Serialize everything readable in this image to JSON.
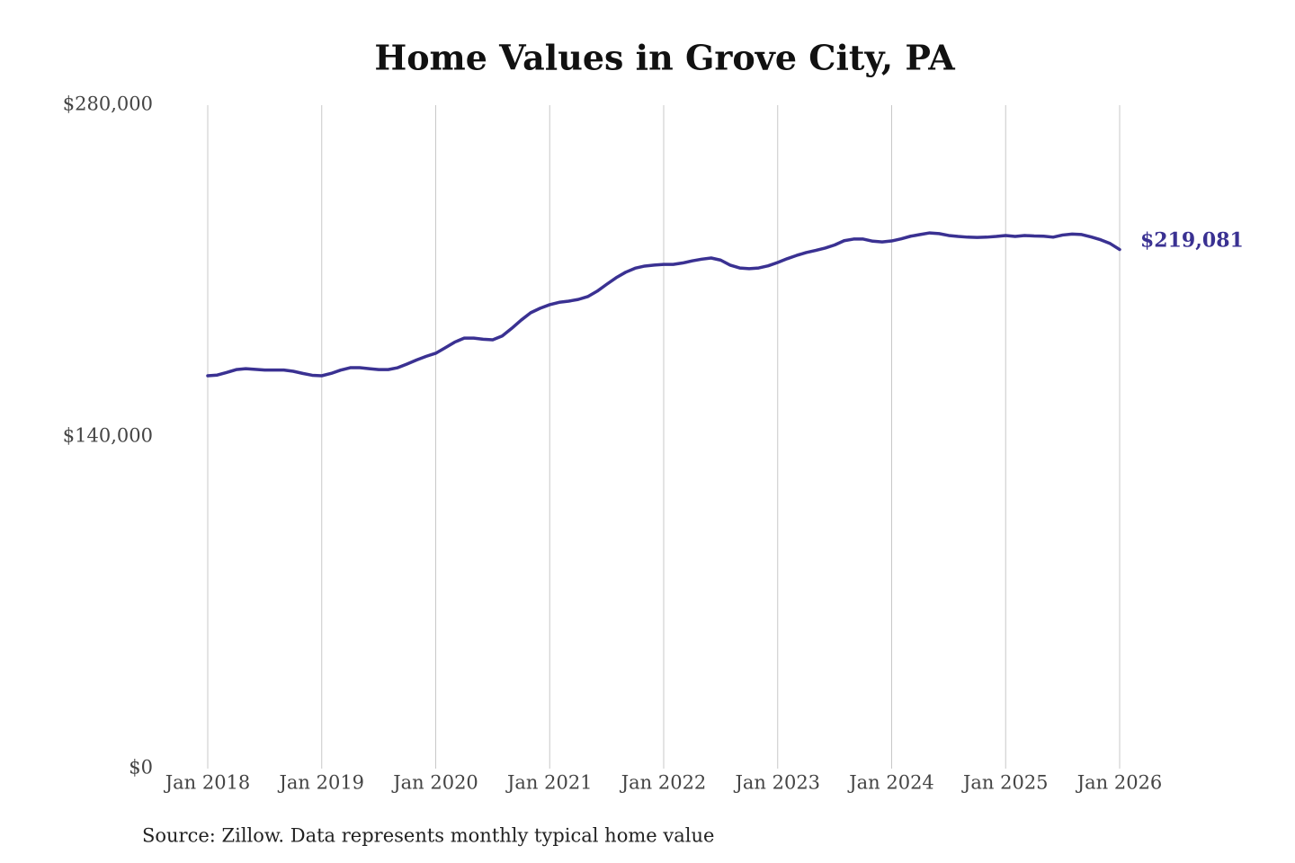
{
  "chart_data": {
    "type": "line",
    "title": "Home Values in Grove City, PA",
    "source": "Source: Zillow. Data represents monthly typical home value",
    "x": [
      "2018-01",
      "2018-02",
      "2018-03",
      "2018-04",
      "2018-05",
      "2018-06",
      "2018-07",
      "2018-08",
      "2018-09",
      "2018-10",
      "2018-11",
      "2018-12",
      "2019-01",
      "2019-02",
      "2019-03",
      "2019-04",
      "2019-05",
      "2019-06",
      "2019-07",
      "2019-08",
      "2019-09",
      "2019-10",
      "2019-11",
      "2019-12",
      "2020-01",
      "2020-02",
      "2020-03",
      "2020-04",
      "2020-05",
      "2020-06",
      "2020-07",
      "2020-08",
      "2020-09",
      "2020-10",
      "2020-11",
      "2020-12",
      "2021-01",
      "2021-02",
      "2021-03",
      "2021-04",
      "2021-05",
      "2021-06",
      "2021-07",
      "2021-08",
      "2021-09",
      "2021-10",
      "2021-11",
      "2021-12",
      "2022-01",
      "2022-02",
      "2022-03",
      "2022-04",
      "2022-05",
      "2022-06",
      "2022-07",
      "2022-08",
      "2022-09",
      "2022-10",
      "2022-11",
      "2022-12",
      "2023-01",
      "2023-02",
      "2023-03",
      "2023-04",
      "2023-05",
      "2023-06",
      "2023-07",
      "2023-08",
      "2023-09",
      "2023-10",
      "2023-11",
      "2023-12",
      "2024-01",
      "2024-02",
      "2024-03",
      "2024-04",
      "2024-05",
      "2024-06",
      "2024-07",
      "2024-08",
      "2024-09",
      "2024-10",
      "2024-11",
      "2024-12",
      "2025-01",
      "2025-02",
      "2025-03",
      "2025-04",
      "2025-05",
      "2025-06",
      "2025-07",
      "2025-08",
      "2025-09",
      "2025-10",
      "2025-11",
      "2025-12",
      "2026-01"
    ],
    "series": [
      {
        "color": "#3a3192",
        "values": [
          165800,
          166100,
          167200,
          168400,
          168800,
          168500,
          168200,
          168200,
          168200,
          167700,
          166800,
          166000,
          165800,
          166800,
          168200,
          169200,
          169200,
          168800,
          168400,
          168400,
          169200,
          170800,
          172500,
          174000,
          175300,
          177600,
          180000,
          181700,
          181700,
          181200,
          181000,
          182600,
          185800,
          189300,
          192400,
          194300,
          195800,
          196800,
          197300,
          198000,
          199200,
          201500,
          204400,
          207200,
          209500,
          211200,
          212100,
          212500,
          212800,
          212800,
          213400,
          214300,
          215000,
          215500,
          214600,
          212500,
          211300,
          211000,
          211300,
          212200,
          213600,
          215200,
          216600,
          217800,
          218700,
          219700,
          221000,
          222800,
          223500,
          223500,
          222600,
          222300,
          222700,
          223600,
          224700,
          225400,
          226100,
          225800,
          225000,
          224600,
          224300,
          224200,
          224300,
          224600,
          225000,
          224600,
          225000,
          224800,
          224700,
          224300,
          225200,
          225600,
          225400,
          224400,
          223200,
          221600,
          219081
        ],
        "value_labels": [
          null,
          null,
          null,
          null,
          null,
          null,
          null,
          null,
          null,
          null,
          null,
          null,
          null,
          null,
          null,
          null,
          null,
          null,
          null,
          null,
          null,
          null,
          null,
          null,
          null,
          null,
          null,
          null,
          null,
          null,
          null,
          null,
          null,
          null,
          null,
          null,
          null,
          null,
          null,
          null,
          null,
          null,
          null,
          null,
          null,
          null,
          null,
          null,
          null,
          null,
          null,
          null,
          null,
          null,
          null,
          null,
          null,
          null,
          null,
          null,
          null,
          null,
          null,
          null,
          null,
          null,
          null,
          null,
          null,
          null,
          null,
          null,
          null,
          null,
          null,
          null,
          null,
          null,
          null,
          null,
          null,
          null,
          null,
          null,
          null,
          null,
          null,
          null,
          null,
          null,
          null,
          null,
          null,
          null,
          null,
          null,
          "$219,081"
        ]
      }
    ],
    "xlim": [
      "2018-01",
      "2026-01"
    ],
    "xticks": [
      {
        "value": "2018-01",
        "label": "Jan 2018"
      },
      {
        "value": "2019-01",
        "label": "Jan 2019"
      },
      {
        "value": "2020-01",
        "label": "Jan 2020"
      },
      {
        "value": "2021-01",
        "label": "Jan 2021"
      },
      {
        "value": "2022-01",
        "label": "Jan 2022"
      },
      {
        "value": "2023-01",
        "label": "Jan 2023"
      },
      {
        "value": "2024-01",
        "label": "Jan 2024"
      },
      {
        "value": "2025-01",
        "label": "Jan 2025"
      },
      {
        "value": "2026-01",
        "label": "Jan 2026"
      }
    ],
    "ylim": [
      0,
      280000
    ],
    "yticks": [
      {
        "value": 0,
        "label": "$0"
      },
      {
        "value": 140000,
        "label": "$140,000"
      },
      {
        "value": 280000,
        "label": "$280,000"
      }
    ],
    "grid": true
  }
}
